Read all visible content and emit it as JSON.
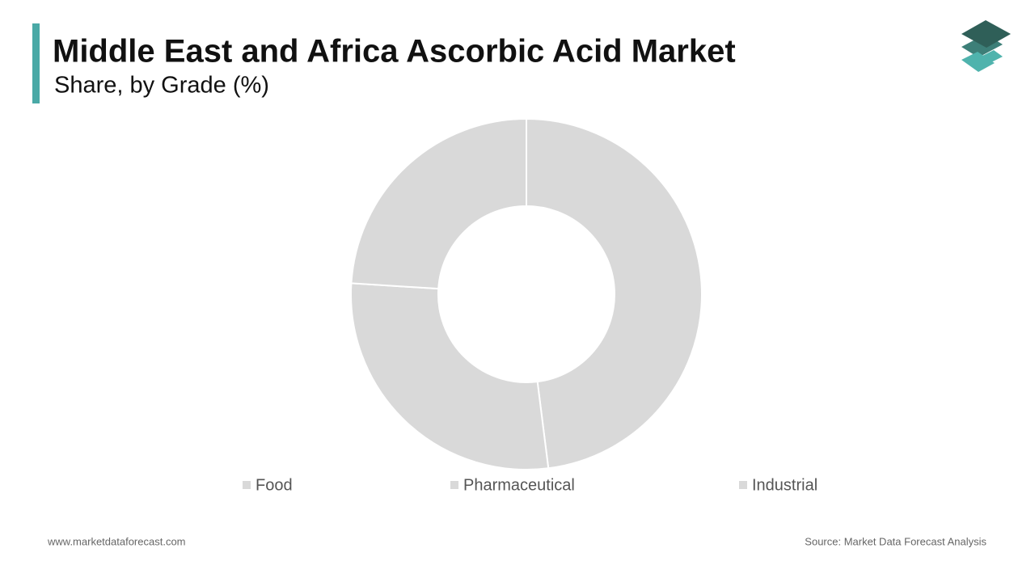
{
  "chart_data": {
    "type": "donut",
    "title": "Middle East and Africa Ascorbic Acid Market",
    "subtitle": "Share, by Grade (%)",
    "categories": [
      "Food",
      "Pharmaceutical",
      "Industrial"
    ],
    "values": [
      48,
      28,
      24
    ],
    "colors": [
      "#d9d9d9",
      "#d9d9d9",
      "#d9d9d9"
    ]
  },
  "footer": {
    "website": "www.marketdataforecast.com",
    "source": "Source: Market Data Forecast Analysis"
  }
}
